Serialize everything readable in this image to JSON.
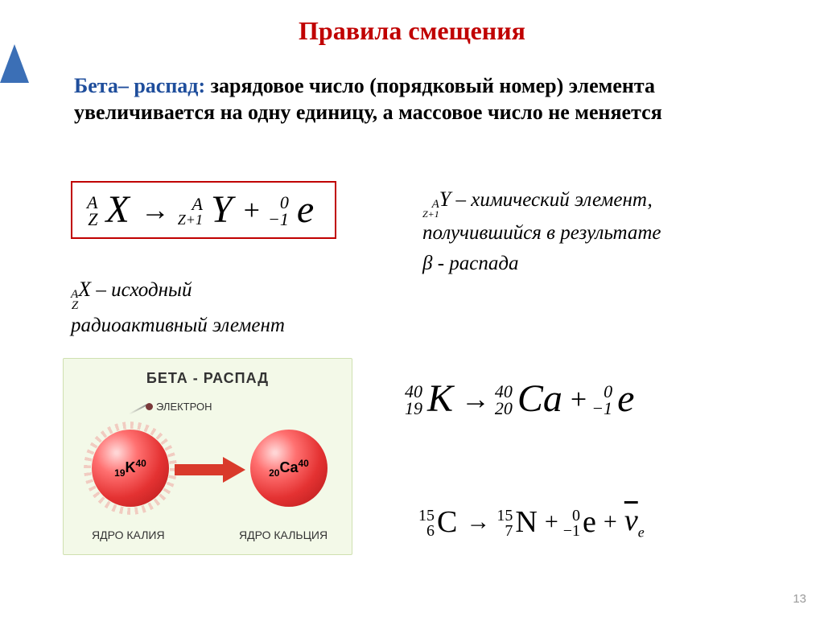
{
  "title": "Правила смещения",
  "intro": {
    "term": "Бета– распад:",
    "text": " зарядовое число (порядковый номер) элемента увеличивается на одну единицу, а массовое число не меняется"
  },
  "generic_formula": {
    "a": "A",
    "z": "Z",
    "zp1": "Z+1",
    "x": "X",
    "y": "Y",
    "e_top": "0",
    "e_bot": "−1",
    "e": "e"
  },
  "legend_right": {
    "product_pre_sup": "A",
    "product_pre_sub": "Z+1",
    "product_sym": "Y",
    "line1_tail": " – химический элемент,",
    "line2": "получившийся в результате",
    "line3_pre": "β",
    "line3_tail": " - распада"
  },
  "legend_left": {
    "parent_pre_sup": "A",
    "parent_pre_sub": "Z",
    "parent_sym": "X",
    "line1_tail": " – исходный",
    "line2": "радиоактивный элемент"
  },
  "diagram": {
    "title": "БЕТА - РАСПАД",
    "electron": "ЭЛЕКТРОН",
    "left_Z": "19",
    "left_sym": "K",
    "left_A": "40",
    "right_Z": "20",
    "right_sym": "Ca",
    "right_A": "40",
    "left_caption": "ЯДРО КАЛИЯ",
    "right_caption": "ЯДРО КАЛЬЦИЯ",
    "colors": {
      "background": "#f3f9e8",
      "sphere_gradient": [
        "#ffd5d5",
        "#ff7070",
        "#e43232",
        "#b01818"
      ],
      "arrow": "#d93a2b"
    }
  },
  "example": {
    "parent_A": "40",
    "parent_Z": "19",
    "parent_sym": "К",
    "product_A": "40",
    "product_Z": "20",
    "product_sym": "Ca",
    "e_top": "0",
    "e_bot": "−1",
    "e": "e"
  },
  "carbon": {
    "parent_A": "15",
    "parent_Z": "6",
    "parent_sym": "C",
    "product_A": "15",
    "product_Z": "7",
    "product_sym": "N",
    "e_top": "0",
    "e_bot": "−1",
    "e": "e",
    "nu": "ν",
    "nu_sub": "e"
  },
  "page_number": "13",
  "colors": {
    "title": "#c00000",
    "term": "#1f4e9c",
    "box_border": "#c00000",
    "nav": "#3b6fb6"
  }
}
